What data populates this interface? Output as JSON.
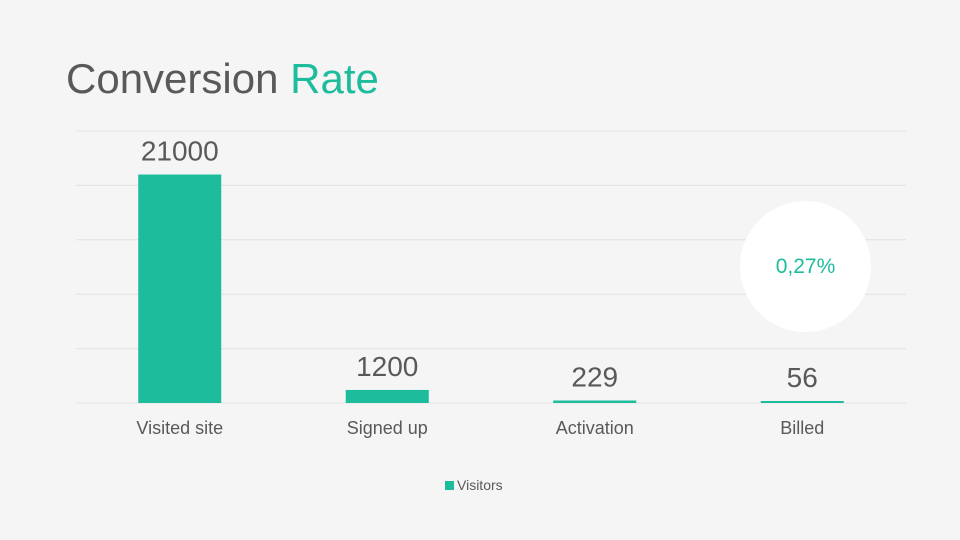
{
  "title": {
    "main": "Conversion",
    "accent": "Rate"
  },
  "colors": {
    "accent": "#1dbc9c",
    "text": "#595959",
    "grid": "#e2e2e2",
    "background": "#f5f5f5"
  },
  "conversion_rate": "0,27%",
  "chart_data": {
    "type": "bar",
    "categories": [
      "Visited site",
      "Signed up",
      "Activation",
      "Billed"
    ],
    "series": [
      {
        "name": "Visitors",
        "values": [
          21000,
          1200,
          229,
          56
        ]
      }
    ],
    "data_labels": [
      "21000",
      "1200",
      "229",
      "56"
    ],
    "ylim": [
      0,
      25000
    ],
    "grid": true,
    "legend": "bottom",
    "xlabel": "",
    "ylabel": ""
  }
}
